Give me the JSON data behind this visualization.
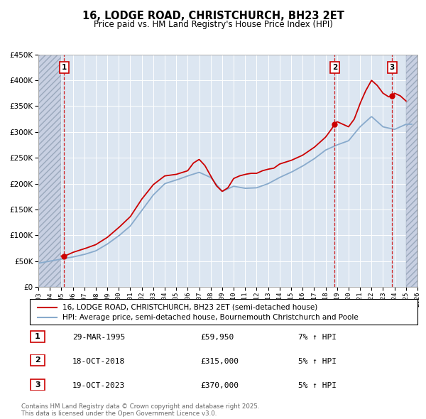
{
  "title": "16, LODGE ROAD, CHRISTCHURCH, BH23 2ET",
  "subtitle": "Price paid vs. HM Land Registry's House Price Index (HPI)",
  "red_label": "16, LODGE ROAD, CHRISTCHURCH, BH23 2ET (semi-detached house)",
  "blue_label": "HPI: Average price, semi-detached house, Bournemouth Christchurch and Poole",
  "footer1": "Contains HM Land Registry data © Crown copyright and database right 2025.",
  "footer2": "This data is licensed under the Open Government Licence v3.0.",
  "sales": [
    {
      "num": 1,
      "date": "29-MAR-1995",
      "price": 59950,
      "pct": "7%",
      "dir": "↑",
      "year": 1995.24
    },
    {
      "num": 2,
      "date": "18-OCT-2018",
      "price": 315000,
      "pct": "5%",
      "dir": "↑",
      "year": 2018.79
    },
    {
      "num": 3,
      "date": "19-OCT-2023",
      "price": 370000,
      "pct": "5%",
      "dir": "↑",
      "year": 2023.79
    }
  ],
  "xlim": [
    1993,
    2026
  ],
  "ylim": [
    0,
    450000
  ],
  "hatch_end1": 1995.0,
  "hatch_start2": 2025.0,
  "bg_color": "#dce6f1",
  "hatch_fc": "#c8d0e2",
  "grid_color": "#ffffff",
  "red_color": "#cc0000",
  "blue_color": "#88aacc",
  "vline_color": "#cc0000",
  "years_hpi": [
    1993,
    1994,
    1995,
    1996,
    1997,
    1998,
    1999,
    2000,
    2001,
    2002,
    2003,
    2004,
    2005,
    2006,
    2007,
    2008,
    2009,
    2010,
    2011,
    2012,
    2013,
    2014,
    2015,
    2016,
    2017,
    2018,
    2019,
    2020,
    2021,
    2022,
    2023,
    2024,
    2025
  ],
  "hpi_vals": [
    46000,
    50000,
    54000,
    58000,
    63000,
    70000,
    83000,
    99000,
    118000,
    148000,
    178000,
    200000,
    207000,
    215000,
    222000,
    212000,
    185000,
    195000,
    191000,
    192000,
    200000,
    212000,
    222000,
    234000,
    248000,
    265000,
    275000,
    283000,
    310000,
    330000,
    310000,
    305000,
    315000
  ],
  "red_years": [
    1995.0,
    1995.5,
    1996,
    1997,
    1998,
    1999,
    2000,
    2001,
    2002,
    2003,
    2004,
    2005,
    2006,
    2006.5,
    2007,
    2007.5,
    2008,
    2008.5,
    2009,
    2009.5,
    2010,
    2010.5,
    2011,
    2011.5,
    2012,
    2012.5,
    2013,
    2013.5,
    2014,
    2015,
    2016,
    2017,
    2018,
    2018.5,
    2018.79,
    2019,
    2019.5,
    2020,
    2020.5,
    2021,
    2021.5,
    2022,
    2022.5,
    2023,
    2023.5,
    2023.79,
    2024,
    2024.5,
    2025.0
  ],
  "red_vals": [
    59950,
    62000,
    67000,
    74000,
    82000,
    96000,
    115000,
    136000,
    170000,
    198000,
    215000,
    218000,
    225000,
    240000,
    247000,
    235000,
    215000,
    196000,
    185000,
    192000,
    210000,
    215000,
    218000,
    220000,
    220000,
    225000,
    228000,
    230000,
    238000,
    245000,
    255000,
    270000,
    290000,
    305000,
    315000,
    320000,
    315000,
    310000,
    325000,
    355000,
    380000,
    400000,
    390000,
    375000,
    368000,
    370000,
    375000,
    370000,
    360000
  ]
}
